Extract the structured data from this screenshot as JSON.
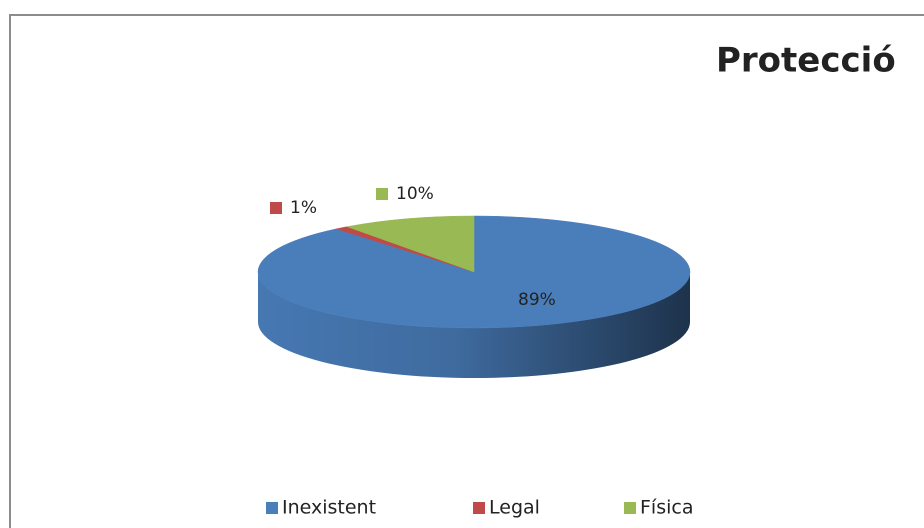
{
  "chart_data": {
    "type": "pie",
    "title": "Protecció",
    "categories": [
      "Inexistent",
      "Legal",
      "Física"
    ],
    "values": [
      89,
      1,
      10
    ],
    "colors": [
      "#4a7ebb",
      "#be4b48",
      "#98b954"
    ],
    "legend": "bottom"
  }
}
